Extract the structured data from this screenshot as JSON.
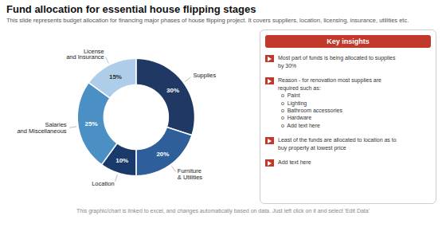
{
  "chart_data": {
    "type": "pie",
    "title": "Fund allocation for essential house flipping stages",
    "subtitle": "This slide represents budget allocation for financing major phases of house flipping project. It covers suppliers, location, licensing, insurance, utilities etc.",
    "caption": "This graphic/chart is linked to excel, and changes automatically based on data. Just left click on it and select 'Edit Data'",
    "categories": [
      "Supplies",
      "Furniture\n& Utilities",
      "Location",
      "Salaries\nand Miscellaneous",
      "License\nand Insurance"
    ],
    "values": [
      30,
      20,
      10,
      25,
      15
    ],
    "value_labels": [
      "30%",
      "20%",
      "10%",
      "25%",
      "15%"
    ],
    "colors": [
      "#1f3864",
      "#2e5f9a",
      "#1a3a6b",
      "#4a90c4",
      "#aecde8"
    ],
    "data_labels": true,
    "annotations": [
      {
        "text": "Key insights",
        "color": "#c0392b"
      },
      {
        "text": "Most part of funds is being allocated to supplies\nby 30%",
        "color": "#c0392b"
      },
      {
        "text": "Reason - for renovation most supplies are\nrequired such as:\n  o  Paint\n  o  Lighting\n  o  Bathroom accessories\n  o  Hardware\n  o  Add text here",
        "color": "#c0392b"
      },
      {
        "text": "Least of the funds are allocated to location as to\nbuy property at lowest price",
        "color": "#c0392b"
      },
      {
        "text": "Add text here",
        "color": "#c0392b"
      }
    ]
  }
}
